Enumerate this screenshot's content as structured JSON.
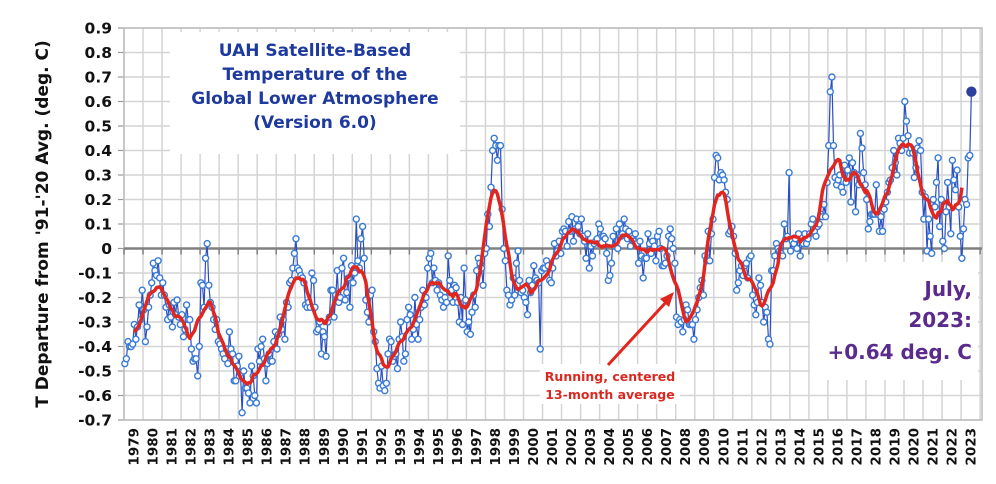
{
  "chart_data": {
    "type": "line",
    "title": "UAH Satellite-Based Temperature of the Global Lower Atmosphere (Version 6.0)",
    "title_lines": [
      "UAH Satellite-Based",
      "Temperature of the",
      "Global Lower Atmosphere",
      "(Version 6.0)"
    ],
    "xlabel": "",
    "ylabel": "T Departure from '91-'20 Avg. (deg. C)",
    "ylim": [
      -0.7,
      0.9
    ],
    "yticks": [
      "0.9",
      "0.8",
      "0.7",
      "0.6",
      "0.5",
      "0.4",
      "0.3",
      "0.2",
      "0.1",
      "0",
      "-0.1",
      "-0.2",
      "-0.3",
      "-0.4",
      "-0.5",
      "-0.6",
      "-0.7"
    ],
    "ytick_values": [
      0.9,
      0.8,
      0.7,
      0.6,
      0.5,
      0.4,
      0.3,
      0.2,
      0.1,
      0,
      -0.1,
      -0.2,
      -0.3,
      -0.4,
      -0.5,
      -0.6,
      -0.7
    ],
    "xticks": [
      "1979",
      "1980",
      "1981",
      "1982",
      "1983",
      "1984",
      "1985",
      "1986",
      "1987",
      "1988",
      "1989",
      "1990",
      "1991",
      "1992",
      "1993",
      "1994",
      "1995",
      "1996",
      "1997",
      "1998",
      "1999",
      "2000",
      "2001",
      "2002",
      "2003",
      "2004",
      "2005",
      "2006",
      "2007",
      "2008",
      "2009",
      "2010",
      "2011",
      "2012",
      "2013",
      "2014",
      "2015",
      "2016",
      "2017",
      "2018",
      "2019",
      "2020",
      "2021",
      "2022",
      "2023"
    ],
    "x_start": "1979-01",
    "x_end": "2023-07",
    "grid": true,
    "colors": {
      "monthly": "#2b4fbf",
      "running": "#e0261e",
      "title": "#1f3a9e",
      "annotation": "#5b2b8c",
      "running_label": "#d92a22",
      "grid": "#d4d4d4",
      "zero_line": "#808080"
    },
    "annotations": {
      "latest": [
        "July,",
        "2023:",
        "+0.64 deg. C"
      ],
      "running_label": [
        "Running, centered",
        "13-month average"
      ]
    },
    "series": [
      {
        "name": "Monthly anomaly",
        "style": "line-with-open-circles",
        "start": "1979-01",
        "values": [
          -0.47,
          -0.45,
          -0.38,
          -0.4,
          -0.4,
          -0.39,
          -0.31,
          -0.37,
          -0.32,
          -0.23,
          -0.29,
          -0.17,
          -0.25,
          -0.38,
          -0.32,
          -0.24,
          -0.19,
          -0.14,
          -0.06,
          -0.09,
          -0.11,
          -0.05,
          -0.12,
          -0.19,
          -0.14,
          -0.19,
          -0.24,
          -0.29,
          -0.23,
          -0.28,
          -0.32,
          -0.22,
          -0.27,
          -0.21,
          -0.28,
          -0.31,
          -0.27,
          -0.36,
          -0.33,
          -0.23,
          -0.29,
          -0.29,
          -0.41,
          -0.46,
          -0.45,
          -0.45,
          -0.52,
          -0.4,
          -0.14,
          -0.15,
          -0.24,
          -0.04,
          0.02,
          -0.15,
          -0.22,
          -0.24,
          -0.29,
          -0.33,
          -0.29,
          -0.38,
          -0.39,
          -0.41,
          -0.43,
          -0.45,
          -0.41,
          -0.47,
          -0.34,
          -0.41,
          -0.43,
          -0.54,
          -0.54,
          -0.48,
          -0.44,
          -0.51,
          -0.67,
          -0.5,
          -0.57,
          -0.57,
          -0.59,
          -0.63,
          -0.48,
          -0.52,
          -0.6,
          -0.63,
          -0.41,
          -0.46,
          -0.4,
          -0.37,
          -0.45,
          -0.54,
          -0.47,
          -0.43,
          -0.46,
          -0.46,
          -0.38,
          -0.34,
          -0.41,
          -0.35,
          -0.28,
          -0.33,
          -0.29,
          -0.37,
          -0.22,
          -0.24,
          -0.14,
          -0.13,
          -0.08,
          -0.02,
          0.04,
          -0.08,
          -0.09,
          -0.11,
          -0.12,
          -0.14,
          -0.23,
          -0.24,
          -0.22,
          -0.24,
          -0.1,
          -0.13,
          -0.24,
          -0.34,
          -0.33,
          -0.3,
          -0.43,
          -0.34,
          -0.36,
          -0.44,
          -0.3,
          -0.28,
          -0.17,
          -0.17,
          -0.28,
          -0.21,
          -0.09,
          -0.22,
          -0.2,
          -0.08,
          -0.04,
          -0.21,
          -0.18,
          -0.12,
          -0.24,
          -0.07,
          -0.14,
          -0.1,
          0.12,
          -0.05,
          -0.08,
          0.04,
          0.09,
          -0.04,
          -0.21,
          -0.26,
          -0.3,
          -0.19,
          -0.17,
          -0.34,
          -0.38,
          -0.49,
          -0.55,
          -0.57,
          -0.48,
          -0.56,
          -0.58,
          -0.55,
          -0.43,
          -0.37,
          -0.38,
          -0.46,
          -0.44,
          -0.43,
          -0.49,
          -0.37,
          -0.3,
          -0.36,
          -0.46,
          -0.43,
          -0.29,
          -0.24,
          -0.27,
          -0.37,
          -0.33,
          -0.2,
          -0.31,
          -0.37,
          -0.29,
          -0.24,
          -0.17,
          -0.23,
          -0.2,
          -0.08,
          -0.04,
          -0.02,
          -0.14,
          -0.08,
          -0.13,
          -0.17,
          -0.14,
          -0.19,
          -0.21,
          -0.24,
          -0.2,
          -0.22,
          -0.03,
          -0.13,
          -0.17,
          -0.22,
          -0.15,
          -0.16,
          -0.22,
          -0.3,
          -0.2,
          -0.31,
          -0.08,
          -0.21,
          -0.34,
          -0.3,
          -0.35,
          -0.26,
          -0.19,
          -0.24,
          -0.09,
          -0.04,
          -0.06,
          -0.08,
          -0.15,
          -0.02,
          0.0,
          0.14,
          0.09,
          0.25,
          0.4,
          0.45,
          0.42,
          0.36,
          0.42,
          0.42,
          0.16,
          0.0,
          -0.05,
          -0.17,
          -0.19,
          -0.23,
          -0.21,
          -0.12,
          -0.19,
          -0.06,
          -0.01,
          -0.13,
          -0.18,
          -0.17,
          -0.2,
          -0.22,
          -0.27,
          -0.13,
          -0.18,
          -0.15,
          -0.07,
          -0.12,
          -0.13,
          -0.14,
          -0.41,
          -0.09,
          -0.08,
          -0.08,
          -0.05,
          -0.07,
          -0.13,
          -0.14,
          -0.08,
          0.02,
          -0.03,
          -0.01,
          0.03,
          -0.02,
          0.07,
          0.08,
          0.07,
          0.01,
          0.11,
          0.07,
          0.13,
          0.03,
          0.08,
          0.12,
          0.09,
          0.06,
          0.12,
          0.05,
          0.03,
          -0.04,
          0.06,
          -0.08,
          0.01,
          -0.03,
          0.02,
          0.03,
          0.04,
          0.1,
          0.08,
          0.05,
          0.05,
          0.04,
          -0.02,
          -0.13,
          -0.11,
          -0.06,
          0.05,
          0.01,
          0.08,
          0.0,
          0.1,
          0.05,
          0.06,
          0.12,
          0.08,
          0.04,
          0.07,
          0.01,
          0.04,
          0.03,
          0.06,
          0.02,
          -0.06,
          0.03,
          -0.03,
          -0.12,
          -0.04,
          -0.04,
          0.06,
          0.02,
          -0.02,
          0.03,
          0.01,
          -0.05,
          0.05,
          0.07,
          0.0,
          -0.07,
          -0.07,
          -0.06,
          -0.03,
          0.05,
          0.08,
          0.04,
          0.0,
          -0.06,
          -0.28,
          -0.31,
          -0.29,
          -0.3,
          -0.34,
          -0.29,
          -0.23,
          -0.25,
          -0.31,
          -0.31,
          -0.31,
          -0.37,
          -0.29,
          -0.25,
          -0.2,
          -0.16,
          -0.13,
          -0.19,
          -0.03,
          -0.05,
          0.07,
          -0.05,
          0.06,
          0.12,
          0.29,
          0.38,
          0.37,
          0.28,
          0.31,
          0.3,
          0.28,
          0.23,
          0.2,
          0.06,
          0.07,
          0.09,
          0.05,
          -0.02,
          -0.17,
          -0.14,
          -0.09,
          -0.07,
          -0.11,
          -0.07,
          -0.06,
          -0.12,
          -0.04,
          -0.03,
          -0.19,
          -0.23,
          -0.27,
          -0.22,
          -0.12,
          -0.15,
          -0.22,
          -0.3,
          -0.24,
          -0.26,
          -0.37,
          -0.39,
          -0.09,
          -0.09,
          -0.03,
          0.02,
          0.0,
          -0.01,
          -0.02,
          -0.03,
          0.1,
          0.04,
          0.05,
          0.31,
          -0.01,
          0.03,
          0.02,
          0.04,
          0.0,
          0.06,
          -0.03,
          0.03,
          0.02,
          0.06,
          0.02,
          0.04,
          0.06,
          0.1,
          0.12,
          0.07,
          0.05,
          0.09,
          0.1,
          0.14,
          0.13,
          0.18,
          0.13,
          0.27,
          0.42,
          0.64,
          0.7,
          0.42,
          0.29,
          0.26,
          0.28,
          0.3,
          0.25,
          0.23,
          0.34,
          0.27,
          0.32,
          0.37,
          0.19,
          0.35,
          0.31,
          0.15,
          0.3,
          0.26,
          0.47,
          0.41,
          0.31,
          0.26,
          0.2,
          0.08,
          0.11,
          0.14,
          0.14,
          0.14,
          0.26,
          0.14,
          0.07,
          0.13,
          0.07,
          0.16,
          0.19,
          0.23,
          0.27,
          0.28,
          0.33,
          0.4,
          0.35,
          0.3,
          0.45,
          0.43,
          0.4,
          0.45,
          0.6,
          0.52,
          0.46,
          0.39,
          0.41,
          0.39,
          0.29,
          0.33,
          0.41,
          0.44,
          0.4,
          0.23,
          0.12,
          0.21,
          -0.01,
          0.12,
          0.05,
          -0.02,
          0.2,
          0.17,
          0.27,
          0.37,
          0.09,
          0.2,
          0.03,
          0.0,
          0.15,
          0.27,
          0.17,
          0.06,
          0.36,
          0.28,
          0.24,
          0.32,
          0.17,
          0.05,
          -0.04,
          0.08,
          0.2,
          0.18,
          0.37,
          0.38,
          0.64
        ]
      },
      {
        "name": "Running, centered 13-month average",
        "style": "thick-line",
        "note": "computed as centered 13-month mean of the monthly series (first/last 6 months omitted)"
      }
    ],
    "highlighted_point": {
      "date": "2023-07",
      "value": 0.64,
      "marker": "filled-circle"
    }
  }
}
